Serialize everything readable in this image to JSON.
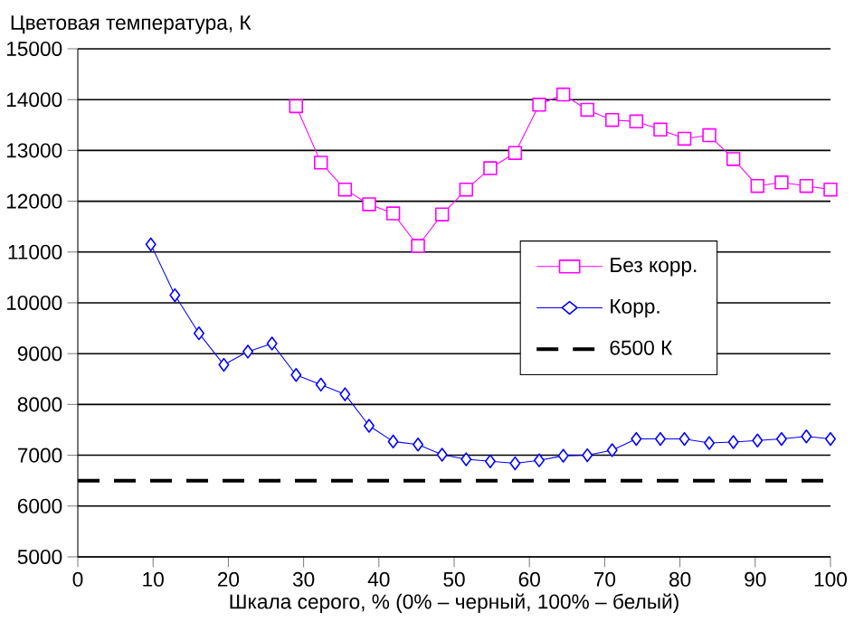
{
  "chart_data": {
    "type": "line",
    "ylabel": "Цветовая температура, К",
    "xlabel": "Шкала серого, % (0% – черный, 100% – белый)",
    "x": [
      9.7,
      12.9,
      16.1,
      19.4,
      22.6,
      25.8,
      29.0,
      32.3,
      35.5,
      38.7,
      41.9,
      45.2,
      48.4,
      51.6,
      54.8,
      58.1,
      61.3,
      64.5,
      67.7,
      71.0,
      74.2,
      77.4,
      80.6,
      83.9,
      87.1,
      90.3,
      93.5,
      96.8,
      100
    ],
    "xlim": [
      0,
      100
    ],
    "xticks": [
      0,
      10,
      20,
      30,
      40,
      50,
      60,
      70,
      80,
      90,
      100
    ],
    "ylim": [
      5000,
      15000
    ],
    "yticks": [
      5000,
      6000,
      7000,
      8000,
      9000,
      10000,
      11000,
      12000,
      13000,
      14000,
      15000
    ],
    "grid": "y",
    "legend": "right",
    "series": [
      {
        "name": "Без корр.",
        "color": "#ff00ff",
        "marker": "square",
        "values": [
          null,
          null,
          null,
          null,
          null,
          null,
          13870,
          12760,
          12230,
          11940,
          11760,
          11120,
          11740,
          12230,
          12650,
          12950,
          13900,
          14100,
          13800,
          13600,
          13570,
          13410,
          13230,
          13300,
          12830,
          12300,
          12370,
          12300,
          12230
        ]
      },
      {
        "name": "Корр.",
        "color": "#0000ff",
        "marker": "diamond",
        "values": [
          11150,
          10150,
          9400,
          8780,
          9040,
          9200,
          8580,
          8390,
          8200,
          7580,
          7270,
          7210,
          7010,
          6920,
          6880,
          6840,
          6900,
          6990,
          7000,
          7100,
          7320,
          7320,
          7320,
          7240,
          7260,
          7290,
          7320,
          7370,
          7320
        ]
      },
      {
        "name": "6500 К",
        "color": "#000000",
        "marker": "none",
        "line_style": "dashed",
        "x": [
          0,
          100
        ],
        "values": [
          6500,
          6500
        ]
      }
    ]
  }
}
